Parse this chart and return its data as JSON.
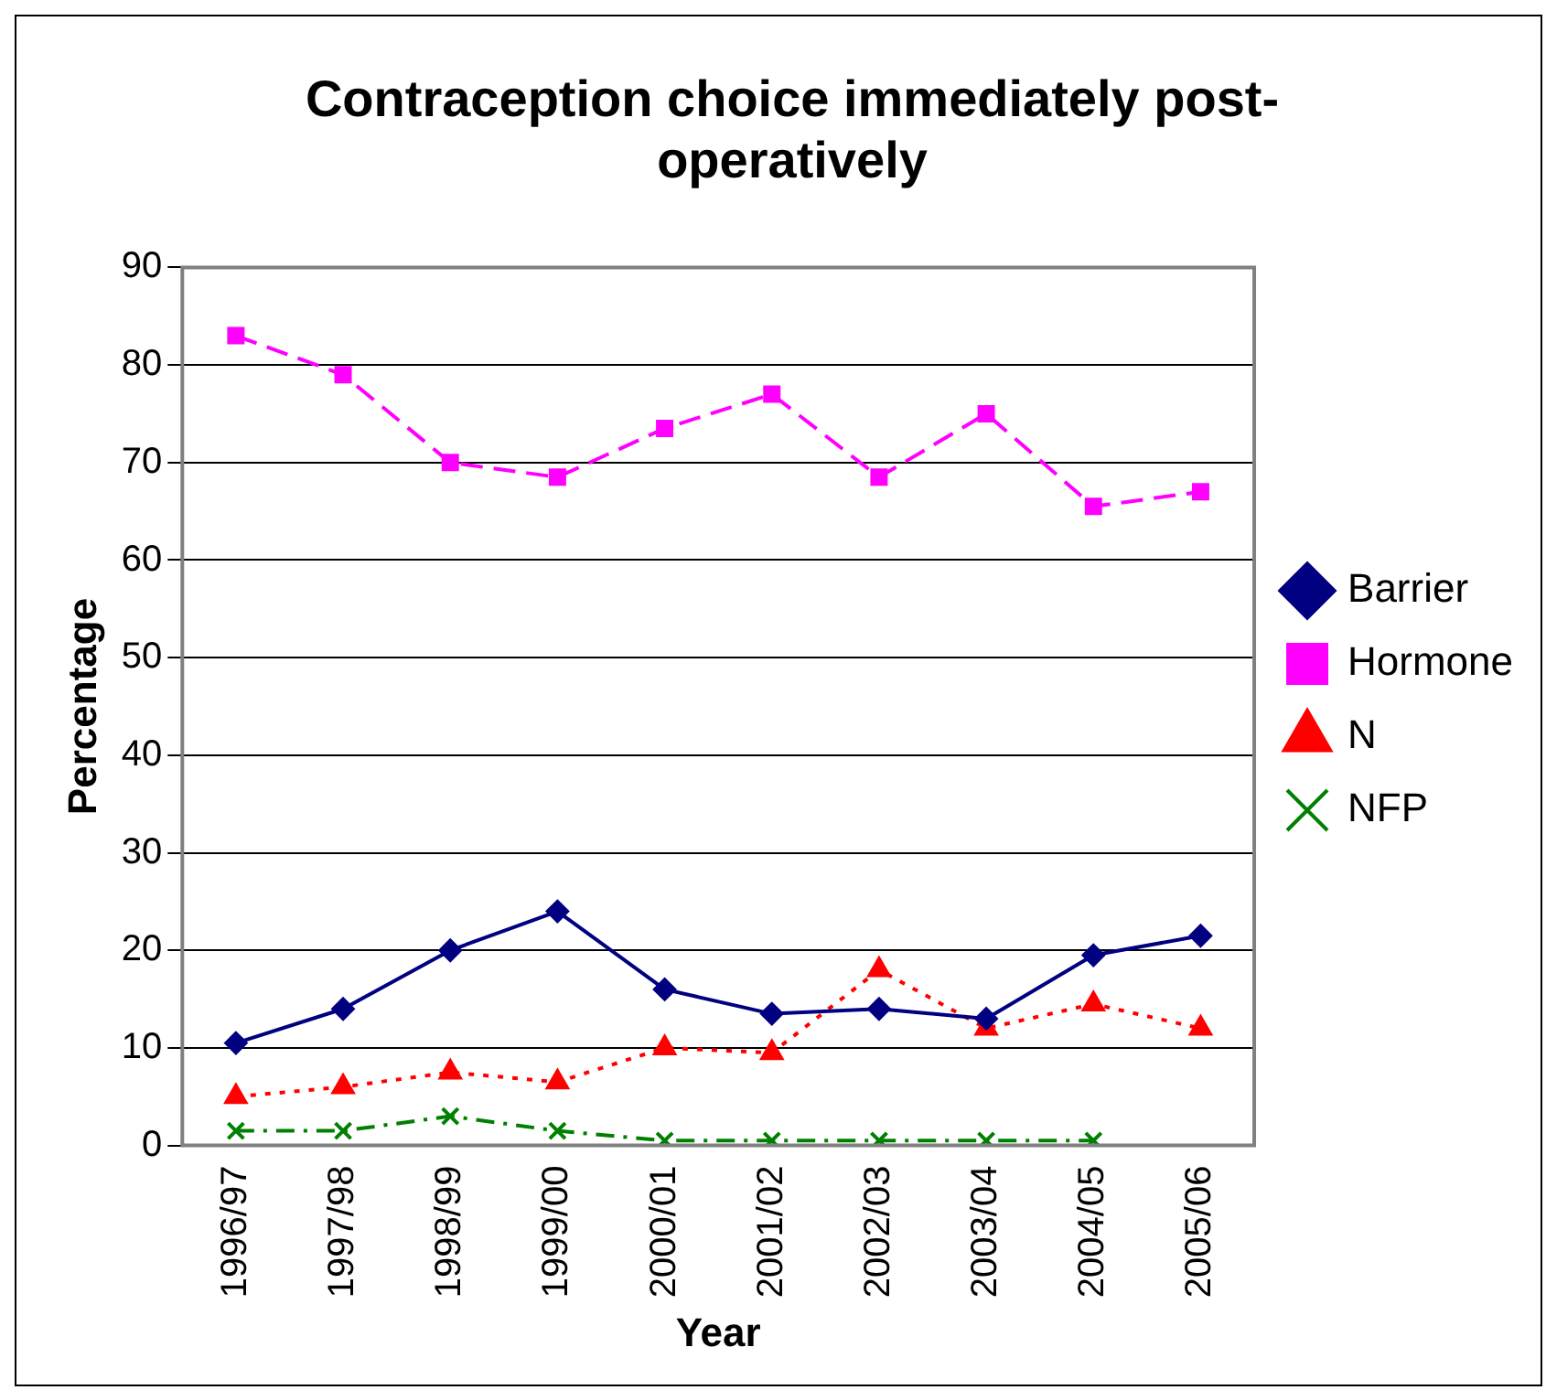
{
  "chart_data": {
    "type": "line",
    "title": "Contraception choice immediately post-operatively",
    "xlabel": "Year",
    "ylabel": "Percentage",
    "categories": [
      "1996/97",
      "1997/98",
      "1998/99",
      "1999/00",
      "2000/01",
      "2001/02",
      "2002/03",
      "2003/04",
      "2004/05",
      "2005/06"
    ],
    "series": [
      {
        "name": "Barrier",
        "color": "#000080",
        "marker": "diamond",
        "line_style": "solid",
        "values": [
          10.5,
          14,
          20,
          24,
          16,
          13.5,
          14,
          13,
          19.5,
          21.5
        ]
      },
      {
        "name": "Hormone",
        "color": "#ff00ff",
        "marker": "square",
        "line_style": "dashed",
        "values": [
          83,
          79,
          70,
          68.5,
          73.5,
          77,
          68.5,
          75,
          65.5,
          67
        ]
      },
      {
        "name": "N",
        "color": "#ff0000",
        "marker": "triangle",
        "line_style": "dotted",
        "values": [
          5,
          6,
          7.5,
          6.5,
          10,
          9.5,
          18,
          12,
          14.5,
          12
        ]
      },
      {
        "name": "NFP",
        "color": "#008000",
        "marker": "cross",
        "line_style": "dashdot",
        "values": [
          1.5,
          1.5,
          3,
          1.5,
          0.5,
          0.5,
          0.5,
          0.5,
          0.5,
          null
        ]
      }
    ],
    "ylim": [
      0,
      90
    ],
    "yticks": [
      0,
      10,
      20,
      30,
      40,
      50,
      60,
      70,
      80,
      90
    ],
    "grid": "y",
    "legend": "right"
  }
}
